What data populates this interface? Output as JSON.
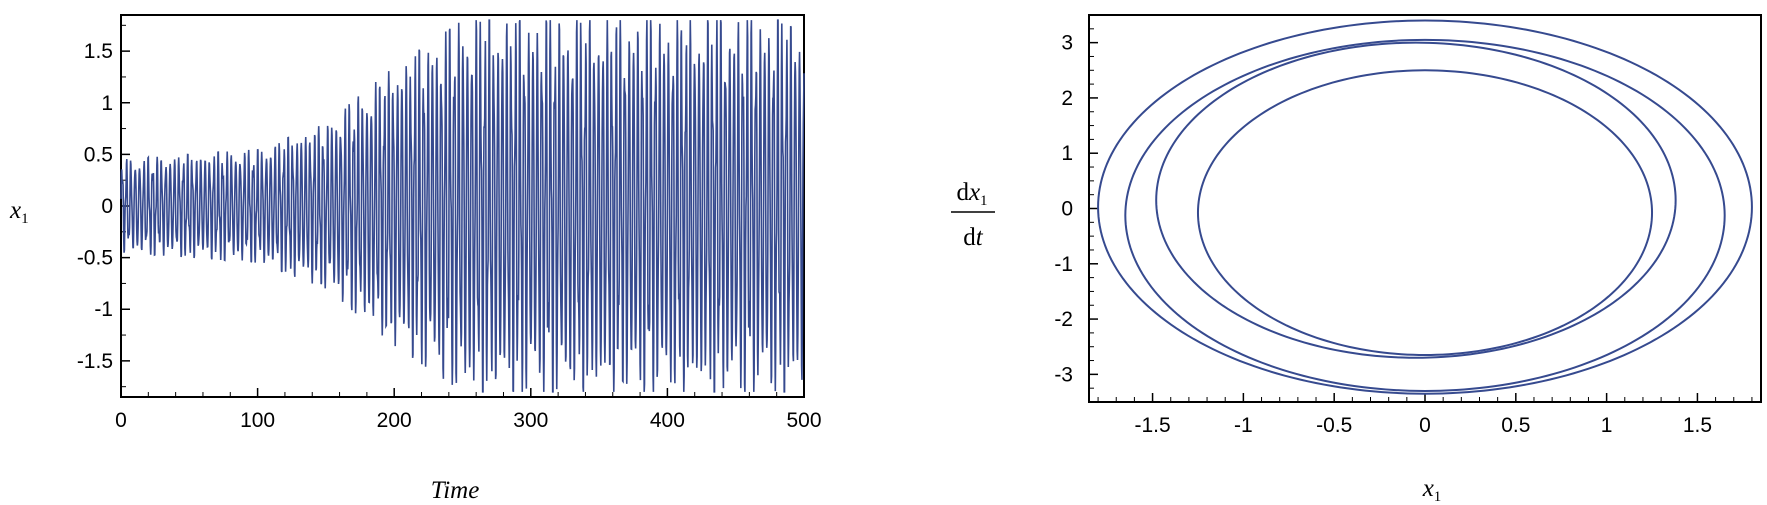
{
  "chart_data": [
    {
      "type": "line",
      "title": "",
      "xlabel": "Time",
      "ylabel": "x1",
      "ylabel_base": "x",
      "ylabel_sub": "1",
      "xlim": [
        0,
        500
      ],
      "ylim": [
        -1.85,
        1.85
      ],
      "xticks": [
        0,
        100,
        200,
        300,
        400,
        500
      ],
      "yticks": [
        -1.5,
        -1,
        -0.5,
        0,
        0.5,
        1,
        1.5
      ],
      "xtick_labels": [
        "0",
        "100",
        "200",
        "300",
        "400",
        "500"
      ],
      "ytick_labels": [
        "-1.5",
        "-1",
        "-0.5",
        "0",
        "0.5",
        "1",
        "1.5"
      ],
      "series": [
        {
          "color": "#364a8f",
          "envelope": {
            "t": [
              0,
              50,
              100,
              150,
              200,
              250,
              300,
              350,
              400,
              450,
              500
            ],
            "amplitude": [
              0.45,
              0.5,
              0.55,
              0.8,
              1.35,
              1.8,
              1.8,
              1.8,
              1.8,
              1.8,
              1.8
            ]
          },
          "samples": 2000,
          "oscillation_period": 3.2
        }
      ],
      "grid": false,
      "legend": "none"
    },
    {
      "type": "line",
      "title": "",
      "xlabel": "x1",
      "xlabel_base": "x",
      "xlabel_sub": "1",
      "ylabel": "dx1/dt",
      "ylabel_num": "dx",
      "ylabel_num_sub": "1",
      "ylabel_den": "dt",
      "xlim": [
        -1.85,
        1.85
      ],
      "ylim": [
        -3.5,
        3.5
      ],
      "xticks": [
        -1.5,
        -1,
        -0.5,
        0,
        0.5,
        1,
        1.5
      ],
      "yticks": [
        -3,
        -2,
        -1,
        0,
        1,
        2,
        3
      ],
      "xtick_labels": [
        "-1.5",
        "-1",
        "-0.5",
        "0",
        "0.5",
        "1",
        "1.5"
      ],
      "ytick_labels": [
        "-3",
        "-2",
        "-1",
        "0",
        "1",
        "2",
        "3"
      ],
      "series": [
        {
          "name": "",
          "color": "#364a8f",
          "x_min": -1.8,
          "x_max": 1.8,
          "y_min": -3.35,
          "y_max": 3.4
        },
        {
          "name": "",
          "color": "#364a8f",
          "x_min": -1.65,
          "x_max": 1.65,
          "y_min": -3.3,
          "y_max": 3.05
        },
        {
          "name": "",
          "color": "#364a8f",
          "x_min": -1.48,
          "x_max": 1.38,
          "y_min": -2.7,
          "y_max": 3.0
        },
        {
          "name": "",
          "color": "#364a8f",
          "x_min": -1.25,
          "x_max": 1.25,
          "y_min": -2.65,
          "y_max": 2.5
        }
      ],
      "grid": false,
      "legend": "none"
    }
  ]
}
